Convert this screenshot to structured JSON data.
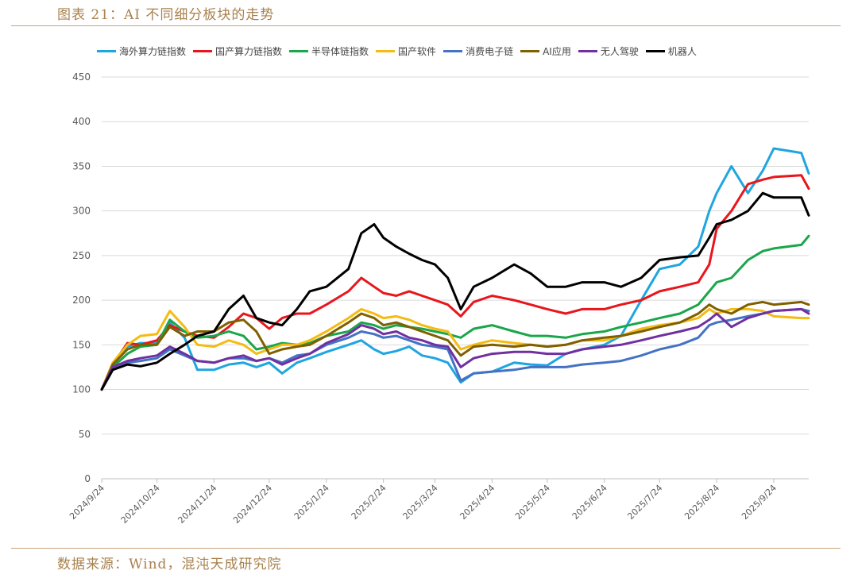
{
  "header": {
    "title": "图表 21：AI 不同细分板块的走势"
  },
  "footer": {
    "source": "数据来源：Wind，混沌天成研究院"
  },
  "chart_data": {
    "type": "line",
    "title": "",
    "xlabel": "",
    "ylabel": "",
    "ylim": [
      0,
      450
    ],
    "yticks": [
      0,
      50,
      100,
      150,
      200,
      250,
      300,
      350,
      400,
      450
    ],
    "grid": true,
    "legend_position": "top",
    "x_ticks": [
      "2024/9/24",
      "2024/10/24",
      "2024/11/24",
      "2024/12/24",
      "2025/1/24",
      "2025/2/24",
      "2025/3/24",
      "2025/4/24",
      "2025/5/24",
      "2025/6/24",
      "2025/7/24",
      "2025/8/24",
      "2025/9/24"
    ],
    "x": [
      "2024/9/24",
      "2024/9/30",
      "2024/10/8",
      "2024/10/15",
      "2024/10/24",
      "2024/10/31",
      "2024/11/8",
      "2024/11/15",
      "2024/11/24",
      "2024/12/2",
      "2024/12/10",
      "2024/12/17",
      "2024/12/24",
      "2024/12/31",
      "2025/1/8",
      "2025/1/15",
      "2025/1/24",
      "2025/2/5",
      "2025/2/12",
      "2025/2/19",
      "2025/2/24",
      "2025/3/3",
      "2025/3/10",
      "2025/3/17",
      "2025/3/24",
      "2025/3/31",
      "2025/4/7",
      "2025/4/14",
      "2025/4/24",
      "2025/5/6",
      "2025/5/15",
      "2025/5/24",
      "2025/6/3",
      "2025/6/12",
      "2025/6/24",
      "2025/7/3",
      "2025/7/14",
      "2025/7/24",
      "2025/8/4",
      "2025/8/14",
      "2025/8/20",
      "2025/8/24",
      "2025/9/1",
      "2025/9/10",
      "2025/9/18",
      "2025/9/24",
      "2025/10/9",
      "2025/10/13"
    ],
    "series": [
      {
        "name": "海外算力链指数",
        "color": "#1fa5e0",
        "values": [
          100,
          128,
          148,
          152,
          152,
          175,
          158,
          122,
          122,
          128,
          130,
          125,
          130,
          118,
          130,
          135,
          142,
          150,
          155,
          145,
          140,
          143,
          148,
          138,
          135,
          130,
          108,
          118,
          120,
          130,
          128,
          127,
          140,
          145,
          150,
          160,
          200,
          235,
          240,
          260,
          300,
          320,
          350,
          320,
          345,
          370,
          365,
          342
        ]
      },
      {
        "name": "国产算力链指数",
        "color": "#e8161c",
        "values": [
          100,
          128,
          152,
          150,
          155,
          172,
          165,
          160,
          158,
          170,
          185,
          180,
          168,
          180,
          185,
          185,
          195,
          210,
          225,
          215,
          208,
          205,
          210,
          205,
          200,
          195,
          182,
          198,
          205,
          200,
          195,
          190,
          185,
          190,
          190,
          195,
          200,
          210,
          215,
          220,
          240,
          280,
          300,
          330,
          335,
          338,
          340,
          325
        ]
      },
      {
        "name": "半导体链指数",
        "color": "#1aa64a",
        "values": [
          100,
          125,
          140,
          148,
          150,
          178,
          165,
          158,
          160,
          165,
          160,
          145,
          148,
          152,
          150,
          152,
          160,
          165,
          175,
          172,
          168,
          172,
          170,
          168,
          165,
          162,
          158,
          168,
          172,
          165,
          160,
          160,
          158,
          162,
          165,
          170,
          175,
          180,
          185,
          195,
          210,
          220,
          225,
          245,
          255,
          258,
          262,
          272
        ]
      },
      {
        "name": "国产软件",
        "color": "#f4bb13",
        "values": [
          100,
          130,
          150,
          160,
          162,
          188,
          170,
          150,
          148,
          155,
          150,
          140,
          145,
          150,
          150,
          155,
          165,
          180,
          190,
          185,
          180,
          182,
          178,
          172,
          168,
          165,
          145,
          150,
          155,
          152,
          150,
          148,
          150,
          155,
          155,
          160,
          168,
          172,
          175,
          180,
          190,
          185,
          190,
          190,
          188,
          182,
          180,
          180
        ]
      },
      {
        "name": "消费电子链",
        "color": "#4472c4",
        "values": [
          100,
          122,
          130,
          132,
          135,
          145,
          138,
          132,
          130,
          135,
          135,
          132,
          135,
          130,
          138,
          140,
          150,
          158,
          165,
          162,
          158,
          160,
          155,
          150,
          148,
          145,
          110,
          118,
          120,
          122,
          125,
          125,
          125,
          128,
          130,
          132,
          138,
          145,
          150,
          158,
          172,
          175,
          178,
          182,
          185,
          188,
          190,
          188
        ]
      },
      {
        "name": "AI应用",
        "color": "#7f6000",
        "values": [
          100,
          128,
          145,
          150,
          150,
          170,
          160,
          165,
          165,
          175,
          178,
          165,
          140,
          145,
          148,
          150,
          160,
          175,
          185,
          180,
          172,
          175,
          170,
          165,
          160,
          155,
          138,
          148,
          150,
          148,
          150,
          148,
          150,
          155,
          158,
          160,
          165,
          170,
          175,
          185,
          195,
          190,
          185,
          195,
          198,
          195,
          198,
          195
        ]
      },
      {
        "name": "无人驾驶",
        "color": "#7030a0",
        "values": [
          100,
          125,
          132,
          135,
          138,
          148,
          140,
          132,
          130,
          135,
          138,
          132,
          135,
          128,
          135,
          140,
          152,
          162,
          172,
          168,
          162,
          165,
          158,
          155,
          150,
          148,
          125,
          135,
          140,
          142,
          142,
          140,
          140,
          145,
          148,
          150,
          155,
          160,
          165,
          170,
          178,
          185,
          170,
          180,
          185,
          188,
          190,
          185
        ]
      },
      {
        "name": "机器人",
        "color": "#000000",
        "values": [
          100,
          122,
          128,
          126,
          130,
          140,
          150,
          160,
          165,
          190,
          205,
          180,
          175,
          172,
          190,
          210,
          215,
          235,
          275,
          285,
          270,
          260,
          252,
          245,
          240,
          225,
          190,
          215,
          225,
          240,
          230,
          215,
          215,
          220,
          220,
          215,
          225,
          245,
          248,
          250,
          270,
          285,
          290,
          300,
          320,
          315,
          315,
          295
        ]
      }
    ]
  }
}
